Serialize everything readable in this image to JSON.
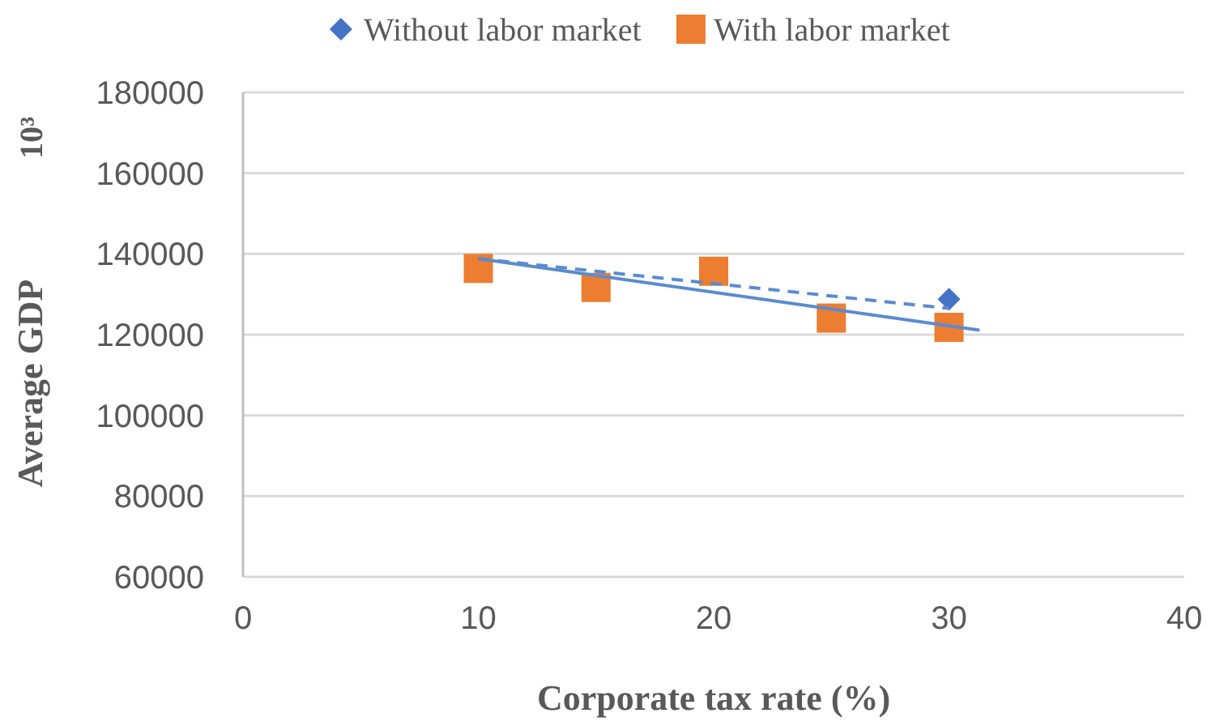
{
  "chart_data": {
    "type": "scatter",
    "xlabel": "Corporate tax rate (%)",
    "ylabel": "Average GDP",
    "annotations": [
      "10³"
    ],
    "x": [
      10,
      15,
      20,
      25,
      30
    ],
    "series": [
      {
        "name": "Without labor market",
        "color": "#4472c4",
        "marker": "diamond",
        "values": [
          null,
          null,
          null,
          null,
          128800
        ]
      },
      {
        "name": "With labor market",
        "color": "#ed7d31",
        "marker": "square",
        "values": [
          136400,
          131700,
          135700,
          124100,
          121800
        ]
      },
      {
        "type": "line",
        "color": "#5b8bd0",
        "x": [
          10,
          30
        ],
        "values": [
          138800,
          126500
        ],
        "line_style": "dashed",
        "marker": "none"
      },
      {
        "type": "line",
        "color": "#5b8bd0",
        "x": [
          10,
          31.3
        ],
        "values": [
          138800,
          121100
        ],
        "line_style": "solid",
        "marker": "none"
      }
    ],
    "xlim": [
      0,
      40
    ],
    "xticks": [
      0,
      10,
      20,
      30,
      40
    ],
    "ylim": [
      60000,
      180000
    ],
    "yticks": [
      60000,
      80000,
      100000,
      120000,
      140000,
      160000,
      180000
    ],
    "grid": "y",
    "legend": "top"
  }
}
